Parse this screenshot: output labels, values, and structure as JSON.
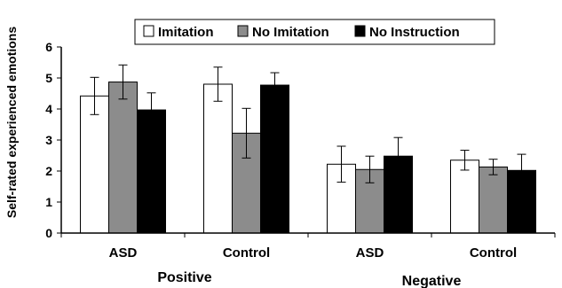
{
  "chart_data": {
    "type": "bar",
    "ylabel": "Self-rated experienced emotions",
    "xlabel": "",
    "ylim": [
      0,
      6
    ],
    "yticks": [
      "0",
      "1",
      "2",
      "3",
      "4",
      "5",
      "6"
    ],
    "grid": false,
    "legend_position": "top",
    "categories": [
      "ASD",
      "Control",
      "ASD",
      "Control"
    ],
    "groups": [
      {
        "label": "Positive",
        "categories": [
          0,
          1
        ]
      },
      {
        "label": "Negative",
        "categories": [
          2,
          3
        ]
      }
    ],
    "series": [
      {
        "name": "Imitation",
        "color": "#ffffff",
        "values": [
          4.42,
          4.8,
          2.22,
          2.35
        ],
        "errors": [
          0.6,
          0.55,
          0.58,
          0.32
        ]
      },
      {
        "name": "No Imitation",
        "color": "#8c8c8c",
        "values": [
          4.87,
          3.22,
          2.05,
          2.13
        ],
        "errors": [
          0.55,
          0.8,
          0.43,
          0.25
        ]
      },
      {
        "name": "No Instruction",
        "color": "#000000",
        "values": [
          3.97,
          4.77,
          2.48,
          2.02
        ],
        "errors": [
          0.55,
          0.4,
          0.6,
          0.52
        ]
      }
    ]
  }
}
